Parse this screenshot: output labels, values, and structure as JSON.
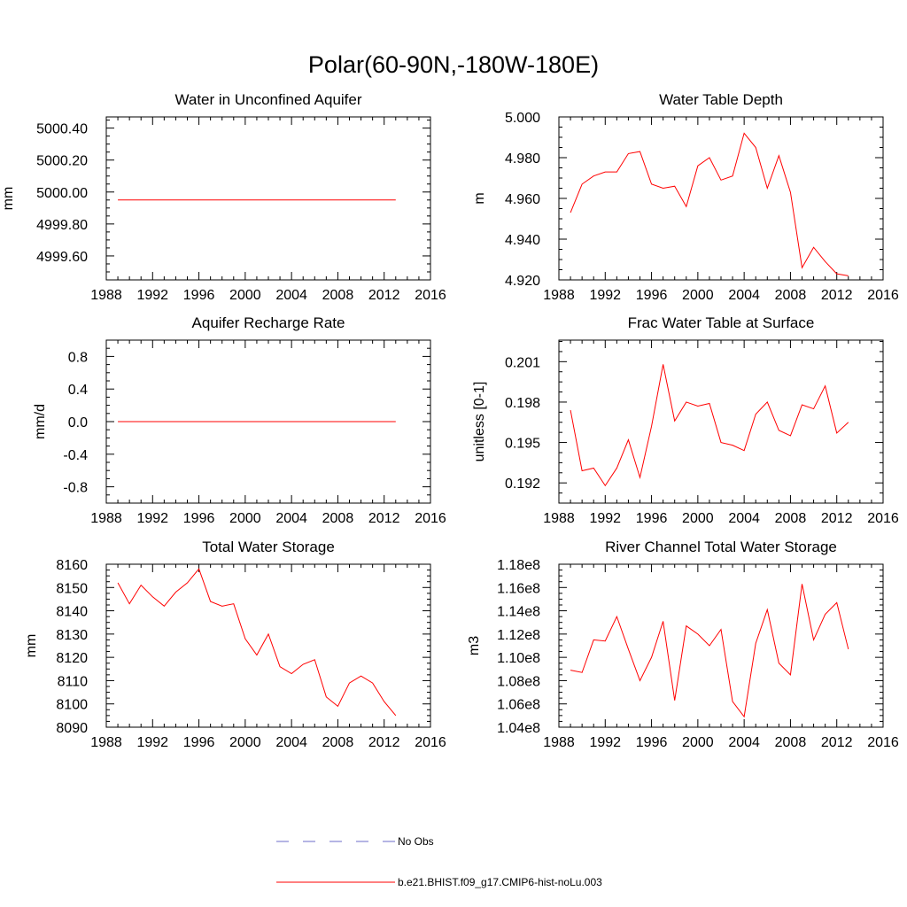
{
  "figure": {
    "title": "Polar(60-90N,-180W-180E)"
  },
  "colors": {
    "series": "#ff0000",
    "obs": "#6b6bc8",
    "axis": "#000000"
  },
  "legend": {
    "placement": "bottom-center",
    "items": [
      {
        "label": "No Obs",
        "style": "dashed",
        "color": "#6b6bc8"
      },
      {
        "label": "b.e21.BHIST.f09_g17.CMIP6-hist-noLu.003",
        "style": "solid",
        "color": "#ff0000"
      }
    ]
  },
  "chart_data": [
    {
      "type": "line",
      "title": "Water in Unconfined Aquifer",
      "ylabel": "mm",
      "xlim": [
        1988,
        2016
      ],
      "ylim": [
        4999.45,
        5000.47
      ],
      "xticks": [
        1988,
        1992,
        1996,
        2000,
        2004,
        2008,
        2012,
        2016
      ],
      "xtick_labels": [
        "1988",
        "1992",
        "1996",
        "2000",
        "2004",
        "2008",
        "2012",
        "2016"
      ],
      "yticks": [
        4999.6,
        4999.8,
        5000.0,
        5000.2,
        5000.4
      ],
      "ytick_labels": [
        "4999.60",
        "4999.80",
        "5000.00",
        "5000.20",
        "5000.40"
      ],
      "x": [
        1989,
        1990,
        1991,
        1992,
        1993,
        1994,
        1995,
        1996,
        1997,
        1998,
        1999,
        2000,
        2001,
        2002,
        2003,
        2004,
        2005,
        2006,
        2007,
        2008,
        2009,
        2010,
        2011,
        2012,
        2013
      ],
      "values": [
        4999.95,
        4999.95,
        4999.95,
        4999.95,
        4999.95,
        4999.95,
        4999.95,
        4999.95,
        4999.95,
        4999.95,
        4999.95,
        4999.95,
        4999.95,
        4999.95,
        4999.95,
        4999.95,
        4999.95,
        4999.95,
        4999.95,
        4999.95,
        4999.95,
        4999.95,
        4999.95,
        4999.95,
        4999.95
      ]
    },
    {
      "type": "line",
      "title": "Water Table Depth",
      "ylabel": "m",
      "xlim": [
        1988,
        2016
      ],
      "ylim": [
        4.92,
        5.0
      ],
      "xticks": [
        1988,
        1992,
        1996,
        2000,
        2004,
        2008,
        2012,
        2016
      ],
      "xtick_labels": [
        "1988",
        "1992",
        "1996",
        "2000",
        "2004",
        "2008",
        "2012",
        "2016"
      ],
      "yticks": [
        4.92,
        4.94,
        4.96,
        4.98,
        5.0
      ],
      "ytick_labels": [
        "4.920",
        "4.940",
        "4.960",
        "4.980",
        "5.000"
      ],
      "x": [
        1989,
        1990,
        1991,
        1992,
        1993,
        1994,
        1995,
        1996,
        1997,
        1998,
        1999,
        2000,
        2001,
        2002,
        2003,
        2004,
        2005,
        2006,
        2007,
        2008,
        2009,
        2010,
        2011,
        2012,
        2013
      ],
      "values": [
        4.953,
        4.967,
        4.971,
        4.973,
        4.973,
        4.982,
        4.983,
        4.967,
        4.965,
        4.966,
        4.956,
        4.976,
        4.98,
        4.969,
        4.971,
        4.992,
        4.985,
        4.965,
        4.981,
        4.963,
        4.926,
        4.936,
        4.929,
        4.923,
        4.922
      ]
    },
    {
      "type": "line",
      "title": "Aquifer Recharge Rate",
      "ylabel": "mm/d",
      "xlim": [
        1988,
        2016
      ],
      "ylim": [
        -1.0,
        1.0
      ],
      "xticks": [
        1988,
        1992,
        1996,
        2000,
        2004,
        2008,
        2012,
        2016
      ],
      "xtick_labels": [
        "1988",
        "1992",
        "1996",
        "2000",
        "2004",
        "2008",
        "2012",
        "2016"
      ],
      "yticks": [
        -0.8,
        -0.4,
        0.0,
        0.4,
        0.8
      ],
      "ytick_labels": [
        "-0.8",
        "-0.4",
        "0.0",
        "0.4",
        "0.8"
      ],
      "x": [
        1989,
        1990,
        1991,
        1992,
        1993,
        1994,
        1995,
        1996,
        1997,
        1998,
        1999,
        2000,
        2001,
        2002,
        2003,
        2004,
        2005,
        2006,
        2007,
        2008,
        2009,
        2010,
        2011,
        2012,
        2013
      ],
      "values": [
        0,
        0,
        0,
        0,
        0,
        0,
        0,
        0,
        0,
        0,
        0,
        0,
        0,
        0,
        0,
        0,
        0,
        0,
        0,
        0,
        0,
        0,
        0,
        0,
        0
      ]
    },
    {
      "type": "line",
      "title": "Frac Water Table at Surface",
      "ylabel": "unitless [0-1]",
      "xlim": [
        1988,
        2016
      ],
      "ylim": [
        0.1905,
        0.2026
      ],
      "xticks": [
        1988,
        1992,
        1996,
        2000,
        2004,
        2008,
        2012,
        2016
      ],
      "xtick_labels": [
        "1988",
        "1992",
        "1996",
        "2000",
        "2004",
        "2008",
        "2012",
        "2016"
      ],
      "yticks": [
        0.192,
        0.195,
        0.198,
        0.201
      ],
      "ytick_labels": [
        "0.192",
        "0.195",
        "0.198",
        "0.201"
      ],
      "x": [
        1989,
        1990,
        1991,
        1992,
        1993,
        1994,
        1995,
        1996,
        1997,
        1998,
        1999,
        2000,
        2001,
        2002,
        2003,
        2004,
        2005,
        2006,
        2007,
        2008,
        2009,
        2010,
        2011,
        2012,
        2013
      ],
      "values": [
        0.1974,
        0.1929,
        0.1931,
        0.1918,
        0.1931,
        0.1952,
        0.1924,
        0.1962,
        0.2008,
        0.1966,
        0.198,
        0.1977,
        0.1979,
        0.195,
        0.1948,
        0.1944,
        0.1971,
        0.198,
        0.1959,
        0.1955,
        0.1978,
        0.1975,
        0.1992,
        0.1957,
        0.1965
      ]
    },
    {
      "type": "line",
      "title": "Total Water Storage",
      "ylabel": "mm",
      "xlim": [
        1988,
        2016
      ],
      "ylim": [
        8090,
        8160
      ],
      "xticks": [
        1988,
        1992,
        1996,
        2000,
        2004,
        2008,
        2012,
        2016
      ],
      "xtick_labels": [
        "1988",
        "1992",
        "1996",
        "2000",
        "2004",
        "2008",
        "2012",
        "2016"
      ],
      "yticks": [
        8090,
        8100,
        8110,
        8120,
        8130,
        8140,
        8150,
        8160
      ],
      "ytick_labels": [
        "8090",
        "8100",
        "8110",
        "8120",
        "8130",
        "8140",
        "8150",
        "8160"
      ],
      "x": [
        1989,
        1990,
        1991,
        1992,
        1993,
        1994,
        1995,
        1996,
        1997,
        1998,
        1999,
        2000,
        2001,
        2002,
        2003,
        2004,
        2005,
        2006,
        2007,
        2008,
        2009,
        2010,
        2011,
        2012,
        2013
      ],
      "values": [
        8152,
        8143,
        8151,
        8146,
        8142,
        8148,
        8152,
        8158,
        8144,
        8142,
        8143,
        8128,
        8121,
        8130,
        8116,
        8113,
        8117,
        8119,
        8103,
        8099,
        8109,
        8112,
        8109,
        8101,
        8095
      ]
    },
    {
      "type": "line",
      "title": "River Channel Total Water Storage",
      "ylabel": "m3",
      "xlim": [
        1988,
        2016
      ],
      "ylim": [
        104000000.0,
        118000000.0
      ],
      "xticks": [
        1988,
        1992,
        1996,
        2000,
        2004,
        2008,
        2012,
        2016
      ],
      "xtick_labels": [
        "1988",
        "1992",
        "1996",
        "2000",
        "2004",
        "2008",
        "2012",
        "2016"
      ],
      "yticks": [
        104000000.0,
        106000000.0,
        108000000.0,
        110000000.0,
        112000000.0,
        114000000.0,
        116000000.0,
        118000000.0
      ],
      "ytick_labels": [
        "1.04e8",
        "1.06e8",
        "1.08e8",
        "1.10e8",
        "1.12e8",
        "1.14e8",
        "1.16e8",
        "1.18e8"
      ],
      "x": [
        1989,
        1990,
        1991,
        1992,
        1993,
        1994,
        1995,
        1996,
        1997,
        1998,
        1999,
        2000,
        2001,
        2002,
        2003,
        2004,
        2005,
        2006,
        2007,
        2008,
        2009,
        2010,
        2011,
        2012,
        2013
      ],
      "values": [
        108900000.0,
        108700000.0,
        111500000.0,
        111400000.0,
        113500000.0,
        110700000.0,
        108000000.0,
        110000000.0,
        113100000.0,
        106300000.0,
        112700000.0,
        112000000.0,
        111000000.0,
        112400000.0,
        106200000.0,
        104900000.0,
        111200000.0,
        114100000.0,
        109500000.0,
        108500000.0,
        116300000.0,
        111500000.0,
        113700000.0,
        114700000.0,
        110700000.0
      ]
    }
  ]
}
